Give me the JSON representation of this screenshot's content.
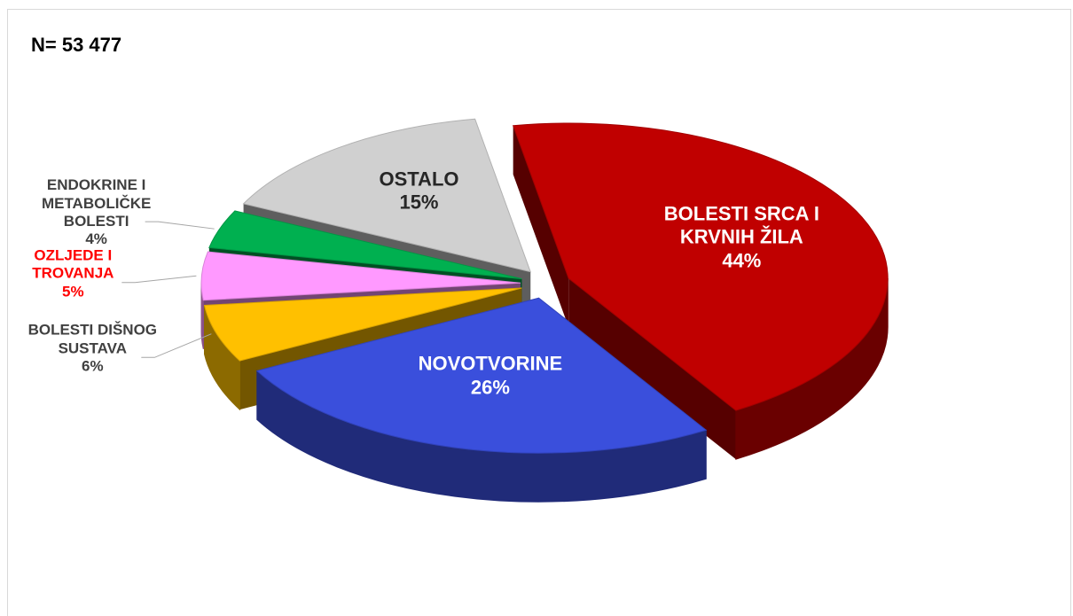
{
  "chart_data": {
    "type": "pie3d",
    "title": "N= 53 477",
    "categories": [
      "BOLESTI SRCA I KRVNIH ŽILA",
      "NOVOTVORINE",
      "BOLESTI DIŠNOG SUSTAVA",
      "OZLJEDE I TROVANJA",
      "ENDOKRINE I METABOLIČKE BOLESTI",
      "OSTALO"
    ],
    "values": [
      44,
      26,
      6,
      5,
      4,
      15
    ],
    "value_labels": [
      "44%",
      "26%",
      "6%",
      "5%",
      "4%",
      "15%"
    ],
    "colors": [
      "#c00000",
      "#3a4fdc",
      "#ffc000",
      "#ff99ff",
      "#00b050",
      "#d0d0d0"
    ],
    "label_colors": [
      "#ffffff",
      "#ffffff",
      "#404040",
      "#ff0000",
      "#404040",
      "#262626"
    ]
  }
}
